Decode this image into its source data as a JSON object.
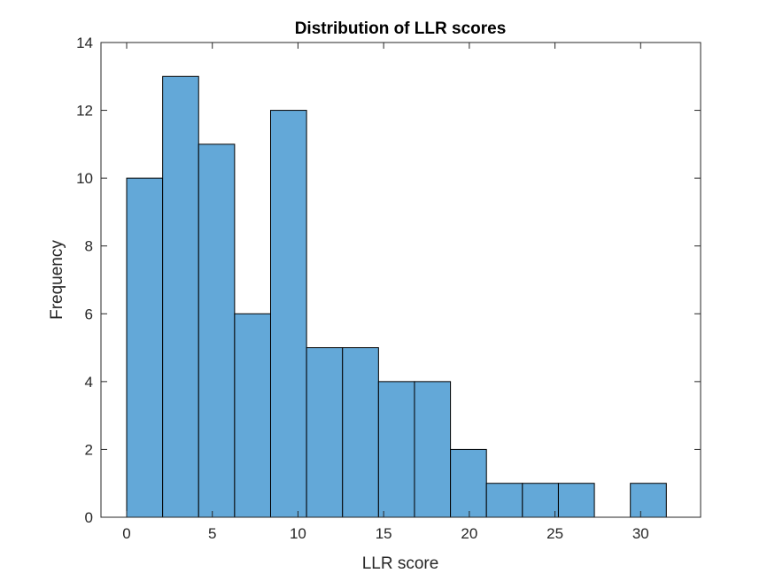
{
  "chart_data": {
    "type": "bar",
    "title": "Distribution of LLR scores",
    "xlabel": "LLR score",
    "ylabel": "Frequency",
    "bin_edges": [
      0,
      2.1,
      4.2,
      6.3,
      8.4,
      10.5,
      12.6,
      14.7,
      16.8,
      18.9,
      21.0,
      23.1,
      25.2,
      27.3,
      29.4,
      31.5
    ],
    "values": [
      10,
      13,
      11,
      6,
      12,
      5,
      5,
      4,
      4,
      2,
      1,
      1,
      1,
      0,
      1
    ],
    "xlim": [
      -1.5,
      33.5
    ],
    "ylim": [
      0,
      14
    ],
    "xticks": [
      0,
      5,
      10,
      15,
      20,
      25,
      30
    ],
    "yticks": [
      0,
      2,
      4,
      6,
      8,
      10,
      12,
      14
    ],
    "bar_color": "#63a8d8",
    "edge_color": "#000000",
    "grid": false
  }
}
